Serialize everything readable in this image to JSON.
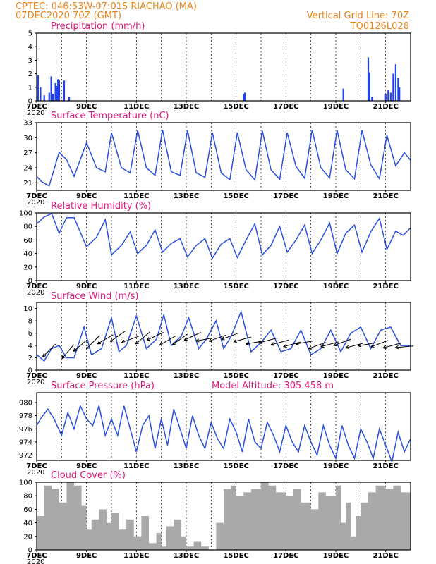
{
  "header": {
    "line1_left": "CPTEC:   046:53W-07:01S  RIACHAO (MA)",
    "line2_left": "07DEC2020 70Z (GMT)",
    "line1_right": "Vertical Grid Line: 70Z",
    "line2_right": "TQ0126L028"
  },
  "x_axis": {
    "tick_labels": [
      "7DEC",
      "9DEC",
      "11DEC",
      "13DEC",
      "15DEC",
      "17DEC",
      "19DEC",
      "21DEC"
    ],
    "year_label": "2020",
    "day_start": 0,
    "day_end": 15
  },
  "colors": {
    "header": "#e8861a",
    "title": "#e0157a",
    "series": "#2a4fe0",
    "precip_bar": "#1f3ff0",
    "cloud": "#a9a9a9"
  },
  "chart_data": [
    {
      "type": "bar",
      "title": "Precipitation (mm/h)",
      "ylim": [
        0,
        5
      ],
      "yticks": [
        "0",
        "1",
        "2",
        "3",
        "4",
        "5"
      ],
      "x": [
        0.05,
        0.15,
        0.3,
        0.5,
        0.58,
        0.65,
        0.75,
        0.8,
        0.85,
        0.9,
        1.1,
        1.3,
        8.3,
        8.35,
        12.3,
        13.3,
        13.35,
        13.45,
        14.0,
        14.1,
        14.2,
        14.3,
        14.4,
        14.5,
        14.55
      ],
      "values": [
        1.9,
        1.0,
        0.4,
        0.6,
        1.8,
        0.5,
        1.3,
        1.1,
        1.6,
        1.5,
        1.5,
        0.3,
        0.5,
        0.6,
        0.9,
        3.2,
        2.1,
        0.3,
        0.5,
        0.8,
        0.6,
        2.0,
        2.7,
        1.7,
        1.0
      ]
    },
    {
      "type": "line",
      "title": "Surface Temperature (nC)",
      "ylim": [
        19.5,
        33
      ],
      "yticks": [
        "21",
        "24",
        "27",
        "30",
        "33"
      ],
      "x": [
        0,
        0.2,
        0.5,
        0.9,
        1.2,
        1.5,
        2.0,
        2.4,
        2.75,
        3.0,
        3.4,
        3.75,
        4.05,
        4.4,
        4.75,
        5.05,
        5.4,
        5.75,
        6.05,
        6.4,
        6.75,
        7.05,
        7.4,
        7.75,
        8.05,
        8.4,
        8.75,
        9.05,
        9.4,
        9.75,
        10.05,
        10.4,
        10.75,
        11.05,
        11.4,
        11.75,
        12.05,
        12.4,
        12.75,
        13.05,
        13.4,
        13.75,
        14.05,
        14.4,
        14.75,
        15.0
      ],
      "values": [
        22.3,
        21.2,
        20.4,
        27.1,
        25.6,
        22.3,
        29.0,
        24.0,
        23.2,
        31.0,
        24.0,
        23.0,
        31.5,
        24.0,
        22.5,
        31.6,
        23.2,
        22.5,
        31.5,
        23.0,
        22.1,
        31.0,
        23.0,
        21.6,
        31.0,
        23.6,
        21.6,
        31.4,
        23.6,
        21.7,
        31.0,
        24.3,
        21.9,
        31.6,
        24.0,
        22.0,
        31.5,
        23.6,
        21.8,
        31.5,
        24.6,
        21.8,
        30.5,
        24.4,
        27.0,
        25.5
      ]
    },
    {
      "type": "line",
      "title": "Relative Humidity (%)",
      "ylim": [
        0,
        100
      ],
      "yticks": [
        "0",
        "20",
        "40",
        "60",
        "80",
        "100"
      ],
      "x": [
        0,
        0.3,
        0.6,
        0.9,
        1.2,
        1.5,
        2.0,
        2.4,
        2.75,
        3.0,
        3.4,
        3.75,
        4.05,
        4.4,
        4.75,
        5.05,
        5.4,
        5.75,
        6.05,
        6.4,
        6.75,
        7.05,
        7.4,
        7.75,
        8.05,
        8.4,
        8.75,
        9.05,
        9.4,
        9.75,
        10.05,
        10.4,
        10.75,
        11.05,
        11.4,
        11.75,
        12.05,
        12.4,
        12.75,
        13.05,
        13.4,
        13.75,
        14.05,
        14.4,
        14.7,
        15.0
      ],
      "values": [
        84,
        94,
        99,
        70,
        93,
        93,
        50,
        64,
        90,
        38,
        52,
        72,
        40,
        52,
        75,
        42,
        55,
        62,
        35,
        52,
        62,
        33,
        54,
        62,
        34,
        60,
        84,
        38,
        52,
        80,
        42,
        60,
        82,
        40,
        60,
        85,
        40,
        70,
        82,
        42,
        72,
        92,
        46,
        73,
        67,
        78
      ]
    },
    {
      "type": "line",
      "title": "Surface Wind (m/s)",
      "ylim": [
        0,
        11
      ],
      "yticks": [
        "0",
        "2",
        "4",
        "6",
        "8",
        "10"
      ],
      "x": [
        0,
        0.3,
        0.6,
        0.9,
        1.2,
        1.5,
        1.9,
        2.2,
        2.6,
        3.0,
        3.3,
        3.6,
        4.0,
        4.4,
        4.8,
        5.1,
        5.4,
        5.8,
        6.1,
        6.5,
        6.8,
        7.2,
        7.5,
        7.8,
        8.2,
        8.6,
        9.0,
        9.4,
        9.8,
        10.2,
        10.6,
        11.0,
        11.4,
        11.8,
        12.2,
        12.6,
        13.0,
        13.4,
        13.8,
        14.2,
        14.6,
        15.0
      ],
      "values": [
        2.5,
        1.5,
        3.5,
        4.0,
        2.0,
        2.0,
        7.0,
        2.5,
        3.5,
        8.5,
        3.0,
        4.0,
        8.8,
        3.5,
        5.0,
        9.0,
        4.0,
        5.5,
        8.5,
        3.5,
        5.0,
        8.0,
        3.5,
        5.5,
        9.5,
        3.0,
        4.5,
        6.5,
        3.0,
        3.5,
        6.5,
        2.5,
        3.5,
        6.5,
        3.0,
        6.0,
        7.0,
        3.5,
        6.5,
        7.0,
        4.0,
        4.0
      ],
      "arrows": {
        "x": [
          0.5,
          1.25,
          1.75,
          2.25,
          2.75,
          3.25,
          3.75,
          4.25,
          4.75,
          5.25,
          5.75,
          6.25,
          6.75,
          7.25,
          7.75,
          8.25,
          8.75,
          9.25,
          9.75,
          10.25,
          10.75,
          11.25,
          11.75,
          12.25,
          12.75,
          13.25,
          13.75,
          14.25,
          14.75
        ],
        "speed": [
          3.2,
          3.0,
          4.0,
          4.5,
          5.0,
          5.5,
          5.0,
          5.2,
          5.5,
          4.8,
          5.0,
          5.5,
          5.0,
          5.2,
          5.5,
          5.0,
          4.5,
          4.8,
          4.5,
          4.2,
          4.5,
          4.0,
          4.2,
          4.5,
          4.0,
          4.2,
          4.3,
          4.0,
          3.8
        ],
        "to_dir": [
          225,
          230,
          220,
          225,
          210,
          215,
          200,
          220,
          205,
          210,
          215,
          205,
          190,
          200,
          200,
          195,
          190,
          195,
          195,
          195,
          190,
          200,
          195,
          200,
          195,
          190,
          200,
          195,
          185
        ]
      }
    },
    {
      "type": "line",
      "title": "Surface Pressure (hPa)",
      "annotation": "Model Altitude: 305.458  m",
      "ylim": [
        971.2,
        981.5
      ],
      "yticks": [
        "972",
        "974",
        "976",
        "978",
        "980"
      ],
      "x": [
        0,
        0.2,
        0.45,
        0.7,
        1.0,
        1.25,
        1.5,
        1.75,
        2.0,
        2.25,
        2.5,
        2.75,
        3.0,
        3.25,
        3.5,
        3.75,
        4.0,
        4.25,
        4.5,
        4.75,
        5.0,
        5.25,
        5.5,
        5.75,
        6.0,
        6.25,
        6.5,
        6.75,
        7.0,
        7.25,
        7.5,
        7.75,
        8.0,
        8.25,
        8.5,
        8.75,
        9.0,
        9.25,
        9.5,
        9.75,
        10.0,
        10.25,
        10.5,
        10.75,
        11.0,
        11.25,
        11.5,
        11.75,
        12.0,
        12.25,
        12.5,
        12.75,
        13.0,
        13.25,
        13.5,
        13.75,
        14.0,
        14.25,
        14.5,
        14.75,
        15.0
      ],
      "values": [
        976.5,
        977.8,
        979.0,
        977.5,
        975.0,
        978.5,
        976.0,
        979.5,
        977.5,
        976.5,
        979.5,
        975.0,
        977.5,
        975.0,
        979.5,
        976.0,
        972.5,
        976.5,
        978.0,
        973.0,
        977.5,
        973.5,
        979.0,
        976.0,
        973.0,
        978.0,
        975.0,
        973.0,
        977.0,
        974.5,
        973.0,
        977.5,
        975.5,
        972.5,
        977.5,
        974.0,
        973.0,
        977.0,
        975.0,
        972.5,
        976.5,
        974.0,
        972.5,
        976.5,
        974.0,
        972.0,
        976.5,
        973.5,
        971.5,
        976.5,
        973.5,
        971.5,
        976.0,
        974.0,
        971.5,
        976.0,
        973.5,
        971.0,
        975.5,
        972.5,
        974.5
      ]
    },
    {
      "type": "area",
      "title": "Cloud Cover (%)",
      "ylim": [
        0,
        100
      ],
      "yticks": [
        "0",
        "20",
        "40",
        "60",
        "80",
        "100"
      ],
      "x": [
        0,
        0.3,
        0.6,
        0.9,
        1.2,
        1.5,
        1.8,
        2.0,
        2.2,
        2.5,
        2.8,
        3.0,
        3.3,
        3.6,
        3.9,
        4.2,
        4.5,
        4.8,
        5.0,
        5.2,
        5.5,
        5.8,
        6.0,
        6.3,
        6.6,
        6.9,
        7.2,
        7.5,
        7.8,
        8.0,
        8.3,
        8.6,
        9.0,
        9.3,
        9.6,
        10.0,
        10.3,
        10.6,
        11.0,
        11.3,
        11.6,
        12.0,
        12.2,
        12.4,
        12.6,
        12.8,
        13.0,
        13.3,
        13.6,
        14.0,
        14.3,
        14.6,
        15.0
      ],
      "values": [
        50,
        95,
        90,
        70,
        100,
        95,
        65,
        30,
        45,
        60,
        40,
        55,
        30,
        45,
        20,
        50,
        10,
        25,
        5,
        35,
        45,
        20,
        5,
        12,
        5,
        0,
        40,
        90,
        95,
        80,
        85,
        90,
        100,
        95,
        85,
        80,
        90,
        70,
        60,
        85,
        80,
        95,
        40,
        70,
        20,
        50,
        70,
        85,
        95,
        90,
        95,
        85,
        95
      ]
    }
  ]
}
